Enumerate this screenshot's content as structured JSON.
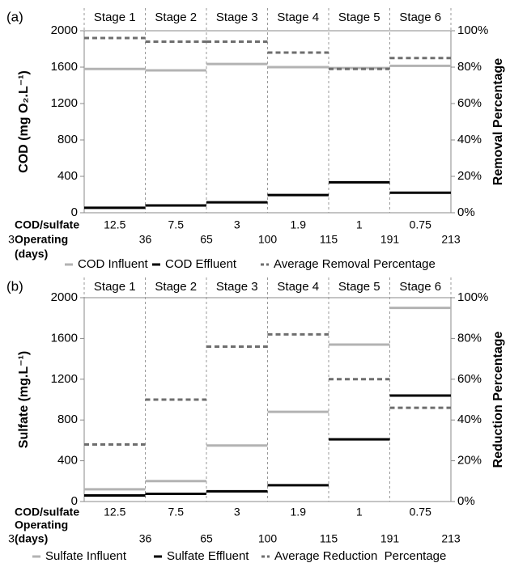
{
  "chart_data": [
    {
      "type": "step",
      "panel_label": "(a)",
      "categories": [
        "Stage 1",
        "Stage 2",
        "Stage 3",
        "Stage 4",
        "Stage 5",
        "Stage 6"
      ],
      "y_label": "COD (mg O₂.L⁻¹)",
      "y2_label": "Removal Percentage",
      "ylim": [
        0,
        2000
      ],
      "yticks": [
        0,
        400,
        800,
        1200,
        1600,
        2000
      ],
      "y2lim": [
        0,
        100
      ],
      "y2ticks": [
        {
          "value": 0,
          "label": "0%"
        },
        {
          "value": 20,
          "label": "20%"
        },
        {
          "value": 40,
          "label": "40%"
        },
        {
          "value": 60,
          "label": "60%"
        },
        {
          "value": 80,
          "label": "80%"
        },
        {
          "value": 100,
          "label": "100%"
        }
      ],
      "series": [
        {
          "name": "COD Influent",
          "color": "#b3b3b3",
          "values": [
            1580,
            1565,
            1635,
            1600,
            1590,
            1615
          ]
        },
        {
          "name": "COD Effluent",
          "color": "#000000",
          "values": [
            55,
            80,
            115,
            195,
            335,
            220
          ]
        },
        {
          "name": "Average Removal Percentage",
          "color": "#6e6e6e",
          "dashed": true,
          "axis": "y2",
          "values": [
            96,
            94,
            94,
            88,
            79,
            85
          ]
        }
      ],
      "ratio_label": "COD/sulfate",
      "ratios": [
        12.5,
        7.5,
        3,
        1.9,
        1,
        0.75
      ],
      "days_label": [
        "Operating",
        "(days)"
      ],
      "days": [
        3,
        36,
        65,
        100,
        115,
        191,
        213
      ]
    },
    {
      "type": "step",
      "panel_label": "(b)",
      "categories": [
        "Stage 1",
        "Stage 2",
        "Stage 3",
        "Stage 4",
        "Stage 5",
        "Stage 6"
      ],
      "y_label": "Sulfate (mg.L⁻¹)",
      "y2_label": "Reduction Percentage",
      "ylim": [
        0,
        2000
      ],
      "yticks": [
        0,
        400,
        800,
        1200,
        1600,
        2000
      ],
      "y2lim": [
        0,
        100
      ],
      "y2ticks": [
        {
          "value": 0,
          "label": "0%"
        },
        {
          "value": 20,
          "label": "20%"
        },
        {
          "value": 40,
          "label": "40%"
        },
        {
          "value": 60,
          "label": "60%"
        },
        {
          "value": 80,
          "label": "80%"
        },
        {
          "value": 100,
          "label": "100%"
        }
      ],
      "series": [
        {
          "name": "Sulfate Influent",
          "color": "#b3b3b3",
          "values": [
            120,
            200,
            550,
            880,
            1540,
            1900
          ]
        },
        {
          "name": "Sulfate Effluent",
          "color": "#000000",
          "values": [
            60,
            75,
            100,
            160,
            610,
            1040
          ]
        },
        {
          "name": "Average Reduction  Percentage",
          "color": "#6e6e6e",
          "dashed": true,
          "axis": "y2",
          "values": [
            28,
            50,
            76,
            82,
            60,
            46
          ]
        }
      ],
      "ratio_label": "COD/sulfate",
      "ratios": [
        12.5,
        7.5,
        3,
        1.9,
        1,
        0.75
      ],
      "days_label": [
        "Operating",
        "(days)"
      ],
      "days": [
        3,
        36,
        65,
        100,
        115,
        191,
        213
      ]
    }
  ]
}
